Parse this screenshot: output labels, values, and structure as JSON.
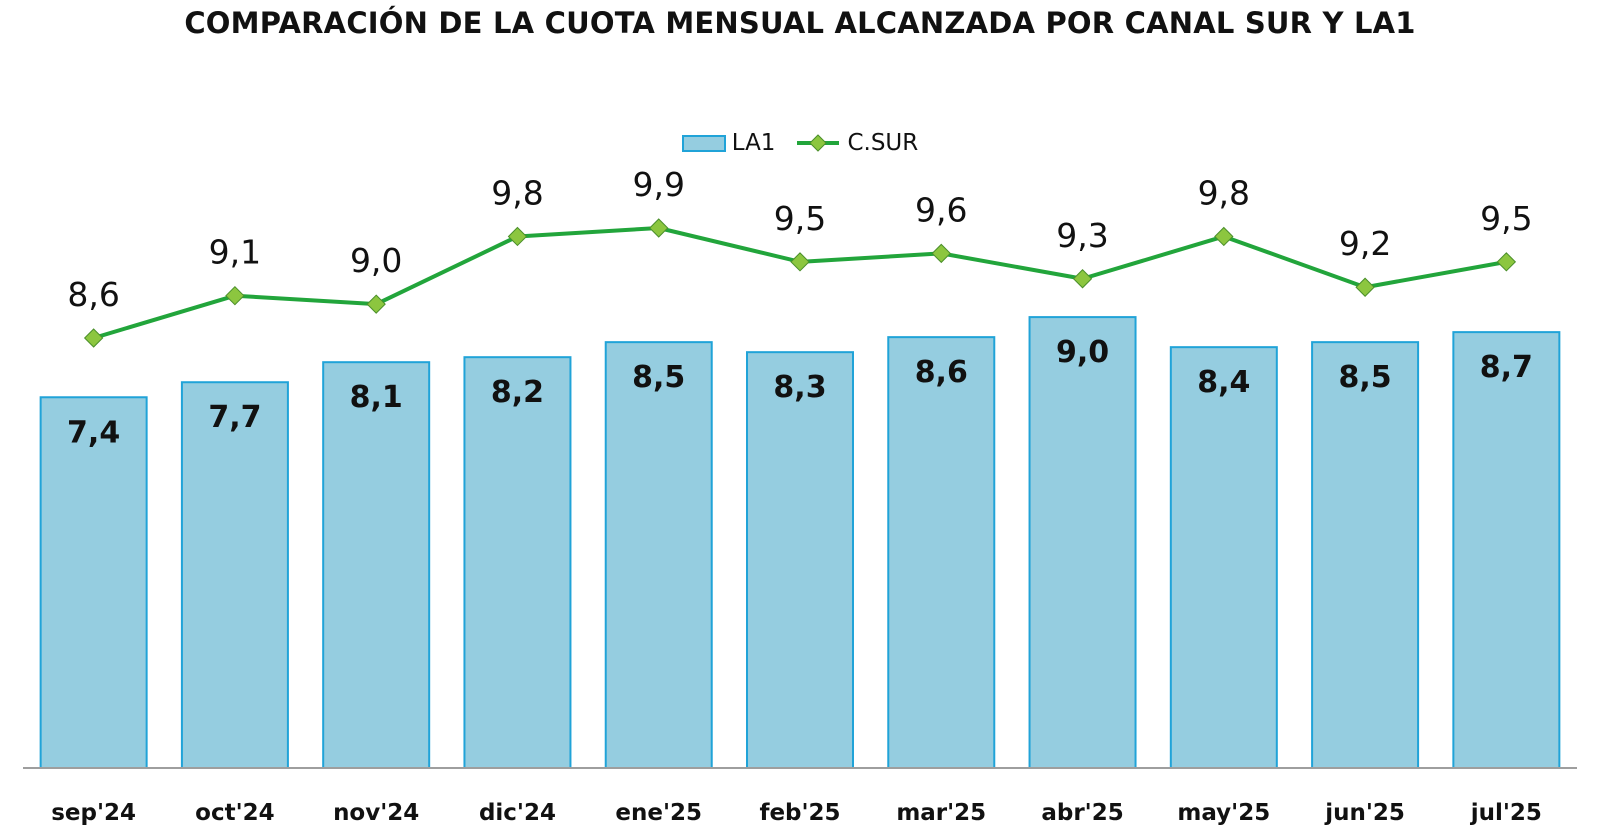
{
  "chart_data": {
    "type": "bar",
    "title": "COMPARACIÓN DE LA CUOTA MENSUAL ALCANZADA POR CANAL SUR Y LA1",
    "categories": [
      "sep'24",
      "oct'24",
      "nov'24",
      "dic'24",
      "ene'25",
      "feb'25",
      "mar'25",
      "abr'25",
      "may'25",
      "jun'25",
      "jul'25"
    ],
    "series": [
      {
        "name": "LA1",
        "type": "bar",
        "color": "#95cde0",
        "border_color": "#20a3d8",
        "values": [
          7.4,
          7.7,
          8.1,
          8.2,
          8.5,
          8.3,
          8.6,
          9.0,
          8.4,
          8.5,
          8.7
        ],
        "labels": [
          "7,4",
          "7,7",
          "8,1",
          "8,2",
          "8,5",
          "8,3",
          "8,6",
          "9,0",
          "8,4",
          "8,5",
          "8,7"
        ]
      },
      {
        "name": "C.SUR",
        "type": "line",
        "color": "#22a53b",
        "marker_color": "#8cc63f",
        "values": [
          8.6,
          9.1,
          9.0,
          9.8,
          9.9,
          9.5,
          9.6,
          9.3,
          9.8,
          9.2,
          9.5
        ],
        "labels": [
          "8,6",
          "9,1",
          "9,0",
          "9,8",
          "9,9",
          "9,5",
          "9,6",
          "9,3",
          "9,8",
          "9,2",
          "9,5"
        ]
      }
    ],
    "legend_position": "top-center",
    "grid": false,
    "ylim": [
      0,
      10
    ],
    "y_axis_visible": false
  }
}
